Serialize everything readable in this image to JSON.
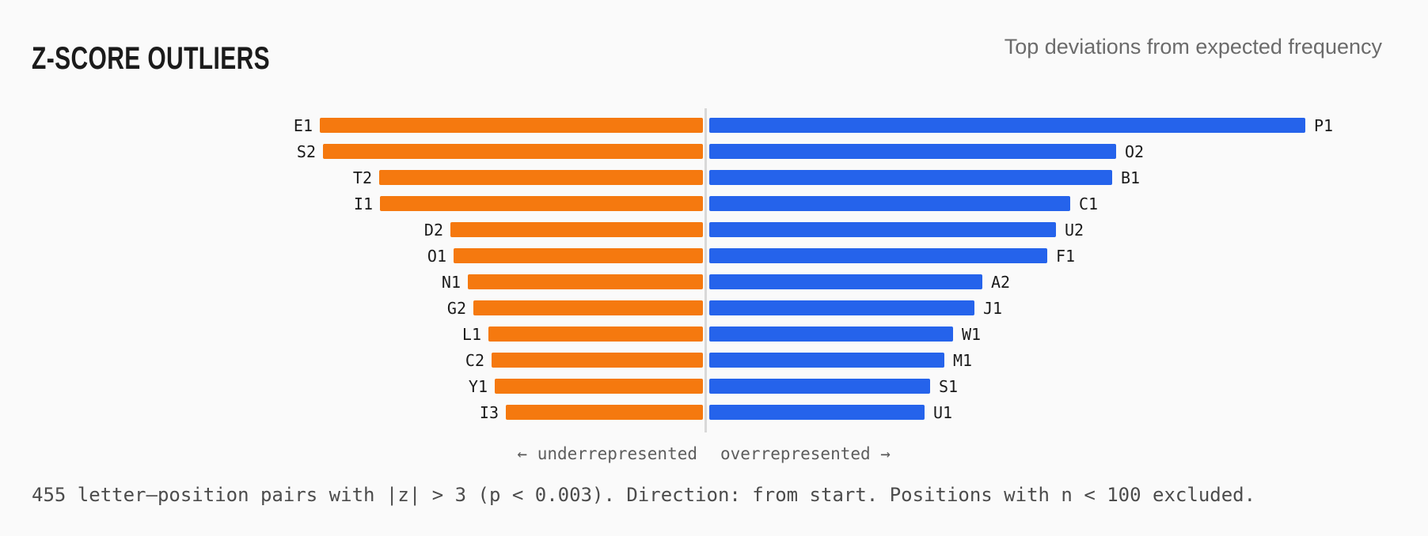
{
  "header": {
    "title": "Z-SCORE OUTLIERS",
    "subtitle": "Top deviations from expected frequency"
  },
  "chart_data": {
    "type": "bar",
    "variant": "horizontal-diverging",
    "title": "Z-SCORE OUTLIERS",
    "subtitle": "Top deviations from expected frequency",
    "legend_position": "none",
    "grid": false,
    "axis_note": "no numeric axis shown; values are bar lengths in screenshot pixels",
    "axis_captions": {
      "left": "← underrepresented",
      "right": "overrepresented →"
    },
    "series": [
      {
        "name": "underrepresented",
        "side": "left",
        "color": "#f5790f",
        "points": [
          {
            "label": "E1",
            "len": 484
          },
          {
            "label": "S2",
            "len": 480
          },
          {
            "label": "T2",
            "len": 409
          },
          {
            "label": "I1",
            "len": 408
          },
          {
            "label": "D2",
            "len": 319
          },
          {
            "label": "O1",
            "len": 315
          },
          {
            "label": "N1",
            "len": 297
          },
          {
            "label": "G2",
            "len": 290
          },
          {
            "label": "L1",
            "len": 271
          },
          {
            "label": "C2",
            "len": 267
          },
          {
            "label": "Y1",
            "len": 263
          },
          {
            "label": "I3",
            "len": 249
          }
        ]
      },
      {
        "name": "overrepresented",
        "side": "right",
        "color": "#2563eb",
        "points": [
          {
            "label": "P1",
            "len": 753
          },
          {
            "label": "O2",
            "len": 514
          },
          {
            "label": "B1",
            "len": 509
          },
          {
            "label": "C1",
            "len": 456
          },
          {
            "label": "U2",
            "len": 438
          },
          {
            "label": "F1",
            "len": 427
          },
          {
            "label": "A2",
            "len": 345
          },
          {
            "label": "J1",
            "len": 335
          },
          {
            "label": "W1",
            "len": 308
          },
          {
            "label": "M1",
            "len": 297
          },
          {
            "label": "S1",
            "len": 279
          },
          {
            "label": "U1",
            "len": 272
          }
        ]
      }
    ]
  },
  "captions": {
    "left": "← underrepresented",
    "right": "overrepresented →"
  },
  "footnote": "455 letter–position pairs with |z| > 3 (p < 0.003). Direction: from start. Positions with n < 100 excluded."
}
